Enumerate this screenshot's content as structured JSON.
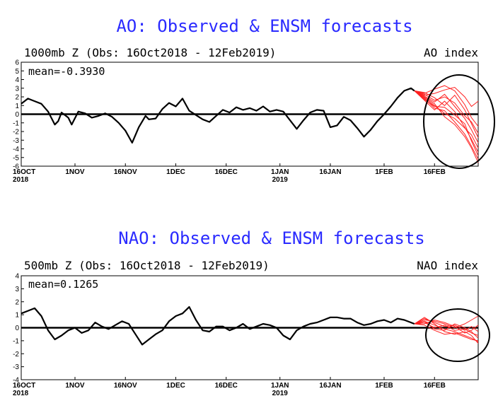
{
  "chart_data": [
    {
      "type": "line",
      "title": "AO: Observed & ENSM forecasts",
      "subtitle_left": "1000mb Z (Obs: 16Oct2018 - 12Feb2019)",
      "subtitle_right": "AO index",
      "mean_label": "mean=-0.3930",
      "ylim": [
        -6,
        6
      ],
      "yticks": [
        "6",
        "5",
        "4",
        "3",
        "2",
        "1",
        "0",
        "-1",
        "-2",
        "-3",
        "-4",
        "-5",
        "-6"
      ],
      "xlim": [
        0,
        136
      ],
      "xticks": [
        {
          "x": 0,
          "label": "16OCT",
          "sub": "2018"
        },
        {
          "x": 16,
          "label": "1NOV",
          "sub": ""
        },
        {
          "x": 31,
          "label": "16NOV",
          "sub": ""
        },
        {
          "x": 46,
          "label": "1DEC",
          "sub": ""
        },
        {
          "x": 61,
          "label": "16DEC",
          "sub": ""
        },
        {
          "x": 77,
          "label": "1JAN",
          "sub": "2019"
        },
        {
          "x": 92,
          "label": "16JAN",
          "sub": ""
        },
        {
          "x": 108,
          "label": "1FEB",
          "sub": ""
        },
        {
          "x": 123,
          "label": "16FEB",
          "sub": ""
        }
      ],
      "observed": {
        "x": [
          0,
          2,
          4,
          6,
          8,
          10,
          11,
          12,
          14,
          15,
          17,
          19,
          21,
          23,
          25,
          27,
          29,
          31,
          33,
          35,
          37,
          38,
          40,
          42,
          44,
          46,
          48,
          50,
          52,
          54,
          56,
          58,
          60,
          62,
          64,
          66,
          68,
          70,
          72,
          74,
          76,
          78,
          80,
          82,
          84,
          86,
          88,
          90,
          92,
          94,
          96,
          98,
          100,
          102,
          104,
          106,
          108,
          110,
          112,
          114,
          116,
          117
        ],
        "y": [
          1.2,
          1.8,
          1.5,
          1.2,
          0.3,
          -1.2,
          -0.8,
          0.2,
          -0.4,
          -1.2,
          0.3,
          0.1,
          -0.4,
          -0.2,
          0.1,
          -0.3,
          -1.0,
          -1.9,
          -3.3,
          -1.5,
          -0.2,
          -0.6,
          -0.5,
          0.6,
          1.3,
          0.9,
          1.8,
          0.4,
          -0.1,
          -0.6,
          -0.9,
          -0.2,
          0.5,
          0.2,
          0.8,
          0.5,
          0.7,
          0.4,
          0.9,
          0.3,
          0.5,
          0.3,
          -0.7,
          -1.7,
          -0.7,
          0.2,
          0.5,
          0.4,
          -1.5,
          -1.3,
          -0.3,
          -0.7,
          -1.6,
          -2.6,
          -1.8,
          -0.8,
          0.0,
          0.9,
          1.9,
          2.7,
          3.0,
          2.7
        ]
      },
      "forecasts": [
        {
          "x": [
            117,
            120,
            123,
            126,
            129,
            132,
            134,
            136
          ],
          "y": [
            2.7,
            2.1,
            1.4,
            2.3,
            0.9,
            -0.5,
            -1.8,
            -3.3
          ]
        },
        {
          "x": [
            117,
            120,
            123,
            126,
            129,
            132,
            134,
            136
          ],
          "y": [
            2.7,
            1.8,
            0.7,
            0.4,
            -0.9,
            -2.3,
            -3.7,
            -5.2
          ]
        },
        {
          "x": [
            117,
            120,
            123,
            126,
            129,
            132,
            134,
            136
          ],
          "y": [
            2.7,
            2.4,
            2.9,
            3.3,
            2.7,
            1.1,
            -0.4,
            -1.4
          ]
        },
        {
          "x": [
            117,
            120,
            123,
            126,
            129,
            132,
            134,
            136
          ],
          "y": [
            2.7,
            2.0,
            1.2,
            -0.3,
            -1.2,
            -2.6,
            -3.9,
            -5.6
          ]
        },
        {
          "x": [
            117,
            120,
            123,
            126,
            129,
            132,
            134,
            136
          ],
          "y": [
            2.7,
            2.5,
            1.9,
            1.0,
            2.2,
            0.5,
            -1.1,
            -2.7
          ]
        },
        {
          "x": [
            117,
            120,
            123,
            126,
            129,
            132,
            134,
            136
          ],
          "y": [
            2.7,
            1.6,
            0.5,
            1.5,
            0.3,
            -1.5,
            -2.9,
            -4.4
          ]
        },
        {
          "x": [
            117,
            120,
            123,
            126,
            129,
            132,
            134,
            136
          ],
          "y": [
            2.7,
            2.2,
            2.4,
            2.8,
            3.1,
            2.0,
            0.9,
            1.5
          ]
        },
        {
          "x": [
            117,
            120,
            123,
            126,
            129,
            132,
            134,
            136
          ],
          "y": [
            2.7,
            1.9,
            1.0,
            0.1,
            -0.5,
            -1.6,
            -2.4,
            -3.9
          ]
        },
        {
          "x": [
            117,
            120,
            123,
            126,
            129,
            132,
            134,
            136
          ],
          "y": [
            2.7,
            2.3,
            1.6,
            2.0,
            1.3,
            -0.2,
            -0.9,
            -2.2
          ]
        },
        {
          "x": [
            117,
            120,
            123,
            126,
            129,
            132,
            134,
            136
          ],
          "y": [
            2.7,
            1.7,
            0.9,
            0.8,
            -0.1,
            -1.1,
            -3.1,
            -4.8
          ]
        }
      ]
    },
    {
      "type": "line",
      "title": "NAO: Observed & ENSM forecasts",
      "subtitle_left": "500mb Z (Obs: 16Oct2018 - 12Feb2019)",
      "subtitle_right": "NAO index",
      "mean_label": "mean=0.1265",
      "ylim": [
        -4,
        4
      ],
      "yticks": [
        "4",
        "3",
        "2",
        "1",
        "0",
        "-1",
        "-2",
        "-3",
        "-4"
      ],
      "xlim": [
        0,
        136
      ],
      "xticks": [
        {
          "x": 0,
          "label": "16OCT",
          "sub": "2018"
        },
        {
          "x": 16,
          "label": "1NOV",
          "sub": ""
        },
        {
          "x": 31,
          "label": "16NOV",
          "sub": ""
        },
        {
          "x": 46,
          "label": "1DEC",
          "sub": ""
        },
        {
          "x": 61,
          "label": "16DEC",
          "sub": ""
        },
        {
          "x": 77,
          "label": "1JAN",
          "sub": "2019"
        },
        {
          "x": 92,
          "label": "16JAN",
          "sub": ""
        },
        {
          "x": 108,
          "label": "1FEB",
          "sub": ""
        },
        {
          "x": 123,
          "label": "16FEB",
          "sub": ""
        }
      ],
      "observed": {
        "x": [
          0,
          2,
          4,
          6,
          8,
          10,
          12,
          14,
          16,
          18,
          20,
          22,
          24,
          26,
          28,
          30,
          32,
          34,
          36,
          38,
          40,
          42,
          44,
          46,
          48,
          50,
          52,
          54,
          56,
          58,
          60,
          62,
          64,
          66,
          68,
          70,
          72,
          74,
          76,
          78,
          80,
          82,
          84,
          86,
          88,
          90,
          92,
          94,
          96,
          98,
          100,
          102,
          104,
          106,
          108,
          110,
          112,
          114,
          116,
          117
        ],
        "y": [
          1.1,
          1.3,
          1.5,
          0.9,
          -0.2,
          -0.9,
          -0.6,
          -0.2,
          0.0,
          -0.4,
          -0.2,
          0.4,
          0.1,
          -0.1,
          0.2,
          0.5,
          0.3,
          -0.5,
          -1.3,
          -0.9,
          -0.5,
          -0.2,
          0.5,
          0.9,
          1.1,
          1.6,
          0.6,
          -0.2,
          -0.3,
          0.1,
          0.1,
          -0.2,
          0.0,
          0.3,
          -0.1,
          0.1,
          0.3,
          0.2,
          0.0,
          -0.6,
          -0.9,
          -0.2,
          0.1,
          0.3,
          0.4,
          0.6,
          0.8,
          0.8,
          0.7,
          0.7,
          0.4,
          0.2,
          0.3,
          0.5,
          0.6,
          0.4,
          0.7,
          0.6,
          0.4,
          0.3
        ]
      },
      "forecasts": [
        {
          "x": [
            117,
            120,
            123,
            126,
            129,
            132,
            134,
            136
          ],
          "y": [
            0.3,
            0.5,
            0.2,
            -0.1,
            -0.3,
            -0.6,
            -0.8,
            -1.1
          ]
        },
        {
          "x": [
            117,
            120,
            123,
            126,
            129,
            132,
            134,
            136
          ],
          "y": [
            0.3,
            0.7,
            0.4,
            0.1,
            0.2,
            -0.2,
            0.1,
            -0.3
          ]
        },
        {
          "x": [
            117,
            120,
            123,
            126,
            129,
            132,
            134,
            136
          ],
          "y": [
            0.3,
            0.2,
            -0.2,
            -0.5,
            -0.4,
            -0.7,
            -0.9,
            -1.0
          ]
        },
        {
          "x": [
            117,
            120,
            123,
            126,
            129,
            132,
            134,
            136
          ],
          "y": [
            0.3,
            0.6,
            0.5,
            0.3,
            0.0,
            0.3,
            0.6,
            0.9
          ]
        },
        {
          "x": [
            117,
            120,
            123,
            126,
            129,
            132,
            134,
            136
          ],
          "y": [
            0.3,
            0.4,
            0.0,
            0.2,
            -0.2,
            -0.1,
            -0.4,
            -0.6
          ]
        },
        {
          "x": [
            117,
            120,
            123,
            126,
            129,
            132,
            134,
            136
          ],
          "y": [
            0.3,
            0.8,
            0.3,
            -0.3,
            -0.5,
            -0.3,
            -0.6,
            -1.2
          ]
        },
        {
          "x": [
            117,
            120,
            123,
            126,
            129,
            132,
            134,
            136
          ],
          "y": [
            0.3,
            0.3,
            0.6,
            0.4,
            0.1,
            -0.4,
            -0.2,
            0.2
          ]
        },
        {
          "x": [
            117,
            120,
            123,
            126,
            129,
            132,
            134,
            136
          ],
          "y": [
            0.3,
            0.5,
            -0.1,
            -0.2,
            0.3,
            0.0,
            -0.3,
            -0.8
          ]
        }
      ]
    }
  ],
  "colors": {
    "title": "#2a2aff",
    "observed": "#000000",
    "forecast": "#ff2020",
    "circle": "#000000"
  }
}
